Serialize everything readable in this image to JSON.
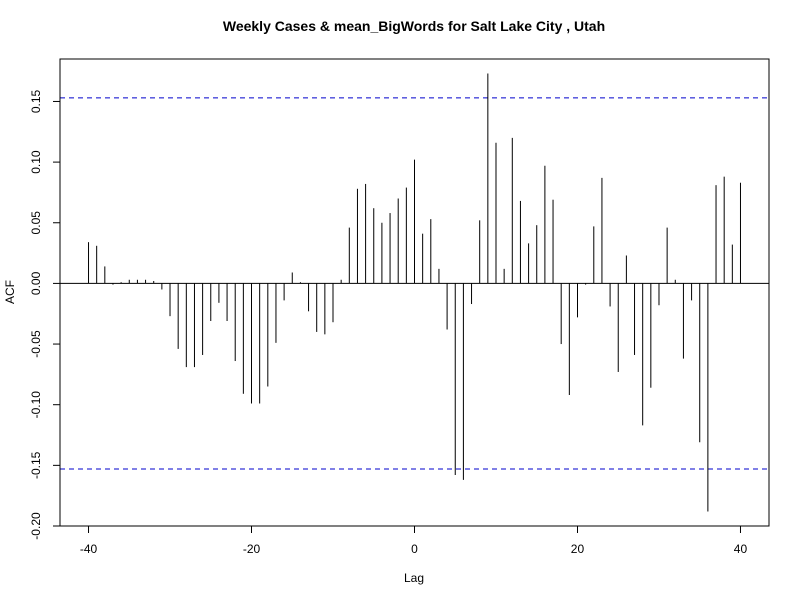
{
  "chart_data": {
    "type": "bar",
    "title": "Weekly Cases & mean_BigWords for Salt Lake City , Utah",
    "xlabel": "Lag",
    "ylabel": "ACF",
    "xlim": [
      -43.5,
      43.5
    ],
    "ylim": [
      -0.2,
      0.185
    ],
    "xticks": [
      -40,
      -20,
      0,
      20,
      40
    ],
    "xtick_labels": [
      "-40",
      "-20",
      "0",
      "20",
      "40"
    ],
    "yticks": [
      -0.2,
      -0.15,
      -0.1,
      -0.05,
      0.0,
      0.05,
      0.1,
      0.15
    ],
    "ytick_labels": [
      "-0.20",
      "-0.15",
      "-0.10",
      "-0.05",
      "0.00",
      "0.05",
      "0.10",
      "0.15"
    ],
    "confidence_band": 0.153,
    "confidence_color": "#0000cc",
    "bar_color": "#000000",
    "grid": false,
    "x": [
      -40,
      -39,
      -38,
      -37,
      -36,
      -35,
      -34,
      -33,
      -32,
      -31,
      -30,
      -29,
      -28,
      -27,
      -26,
      -25,
      -24,
      -23,
      -22,
      -21,
      -20,
      -19,
      -18,
      -17,
      -16,
      -15,
      -14,
      -13,
      -12,
      -11,
      -10,
      -9,
      -8,
      -7,
      -6,
      -5,
      -4,
      -3,
      -2,
      -1,
      0,
      1,
      2,
      3,
      4,
      5,
      6,
      7,
      8,
      9,
      10,
      11,
      12,
      13,
      14,
      15,
      16,
      17,
      18,
      19,
      20,
      21,
      22,
      23,
      24,
      25,
      26,
      27,
      28,
      29,
      30,
      31,
      32,
      33,
      34,
      35,
      36,
      37,
      38,
      39,
      40
    ],
    "values": [
      0.034,
      0.031,
      0.014,
      -0.001,
      0.001,
      0.003,
      0.003,
      0.003,
      0.002,
      -0.005,
      -0.027,
      -0.054,
      -0.069,
      -0.069,
      -0.059,
      -0.031,
      -0.016,
      -0.031,
      -0.064,
      -0.091,
      -0.099,
      -0.099,
      -0.085,
      -0.049,
      -0.014,
      0.009,
      0.001,
      -0.023,
      -0.04,
      -0.042,
      -0.032,
      0.003,
      0.046,
      0.078,
      0.082,
      0.062,
      0.05,
      0.058,
      0.07,
      0.079,
      0.102,
      0.041,
      0.053,
      0.012,
      -0.038,
      -0.158,
      -0.162,
      -0.017,
      0.052,
      0.173,
      0.116,
      0.012,
      0.12,
      0.068,
      0.033,
      0.048,
      0.097,
      0.069,
      -0.05,
      -0.092,
      -0.028,
      -0.001,
      0.047,
      0.087,
      -0.019,
      -0.073,
      0.023,
      -0.059,
      -0.117,
      -0.086,
      -0.018,
      0.046,
      0.003,
      -0.062,
      -0.014,
      -0.131,
      -0.188,
      0.081,
      0.088,
      0.032,
      0.083
    ]
  }
}
